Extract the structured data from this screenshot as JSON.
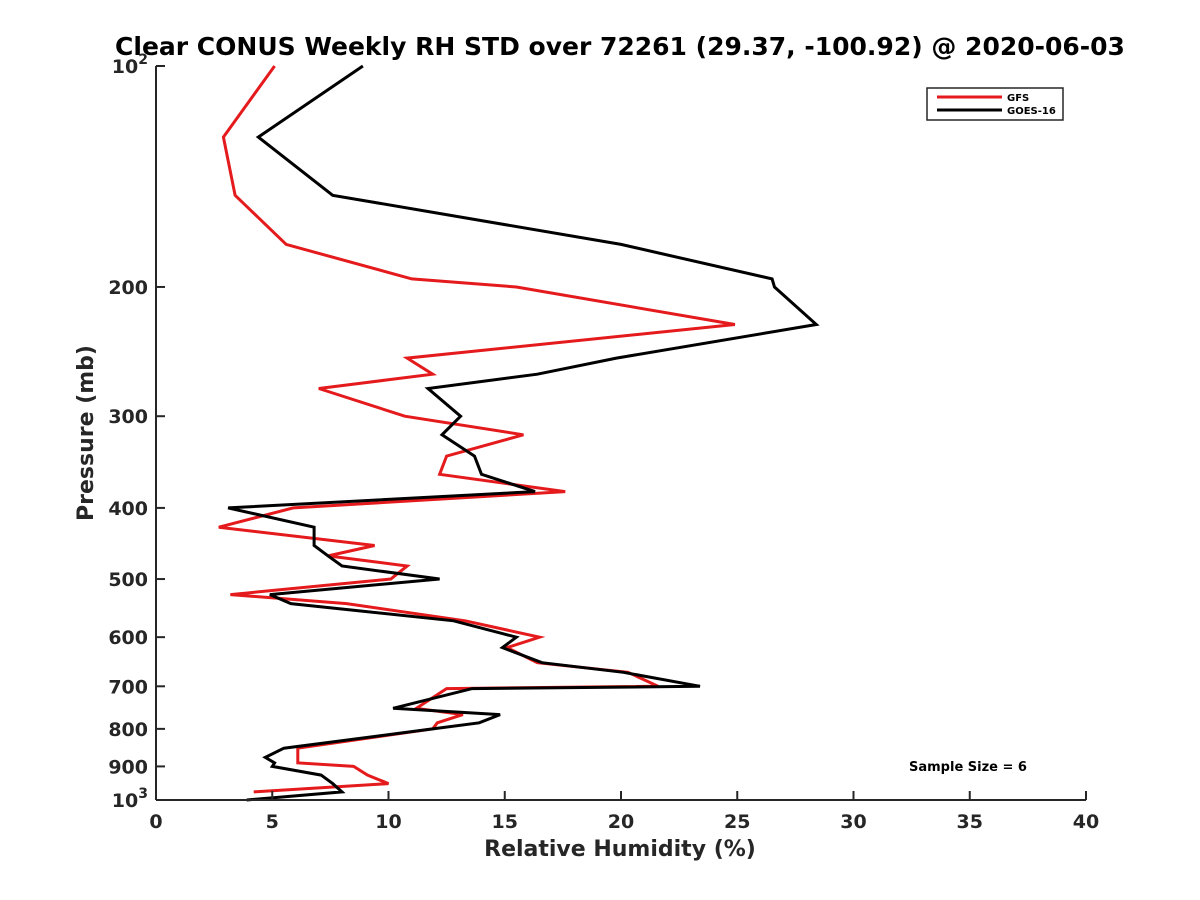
{
  "chart_data": {
    "type": "line",
    "title": "Clear CONUS Weekly RH STD over 72261 (29.37, -100.92) @ 2020-06-03",
    "xlabel": "Relative Humidity (%)",
    "ylabel": "Pressure (mb)",
    "xlim": [
      0,
      40
    ],
    "ylim": [
      100,
      1000
    ],
    "y_scale": "log",
    "y_reversed": true,
    "x_ticks": [
      "0",
      "5",
      "10",
      "15",
      "20",
      "25",
      "30",
      "35",
      "40"
    ],
    "x_tick_values": [
      0,
      5,
      10,
      15,
      20,
      25,
      30,
      35,
      40
    ],
    "y_ticks": [
      {
        "value": 100,
        "base": "10",
        "exp": "2"
      },
      {
        "value": 200,
        "label": "200"
      },
      {
        "value": 300,
        "label": "300"
      },
      {
        "value": 400,
        "label": "400"
      },
      {
        "value": 500,
        "label": "500"
      },
      {
        "value": 600,
        "label": "600"
      },
      {
        "value": 700,
        "label": "700"
      },
      {
        "value": 800,
        "label": "800"
      },
      {
        "value": 900,
        "label": "900"
      },
      {
        "value": 1000,
        "base": "10",
        "exp": "3"
      }
    ],
    "legend_position": "top-right",
    "grid": false,
    "annotation": "Sample Size = 6",
    "series": [
      {
        "name": "GFS",
        "color": "#e41a1c",
        "points": [
          [
            5.1,
            100
          ],
          [
            2.9,
            125
          ],
          [
            3.4,
            150
          ],
          [
            5.6,
            175
          ],
          [
            11,
            195
          ],
          [
            15.5,
            200
          ],
          [
            24.9,
            225
          ],
          [
            10.8,
            250
          ],
          [
            11.9,
            263
          ],
          [
            7,
            275
          ],
          [
            10.7,
            300
          ],
          [
            15.8,
            318
          ],
          [
            12.5,
            340
          ],
          [
            12.2,
            360
          ],
          [
            17.6,
            380
          ],
          [
            5.9,
            400
          ],
          [
            2.7,
            425
          ],
          [
            9.4,
            450
          ],
          [
            7.4,
            465
          ],
          [
            10.8,
            480
          ],
          [
            10.1,
            500
          ],
          [
            3.2,
            525
          ],
          [
            8.2,
            540
          ],
          [
            13.3,
            570
          ],
          [
            16.5,
            600
          ],
          [
            15.1,
            620
          ],
          [
            16.4,
            650
          ],
          [
            20.3,
            670
          ],
          [
            21.6,
            700
          ],
          [
            12.5,
            705
          ],
          [
            11.2,
            750
          ],
          [
            13.2,
            765
          ],
          [
            12.1,
            785
          ],
          [
            11.9,
            800
          ],
          [
            6.1,
            850
          ],
          [
            6.1,
            875
          ],
          [
            6.1,
            890
          ],
          [
            8.5,
            900
          ],
          [
            9.1,
            925
          ],
          [
            10,
            950
          ],
          [
            4.2,
            975
          ]
        ]
      },
      {
        "name": "GOES-16",
        "color": "#000000",
        "points": [
          [
            8.9,
            100
          ],
          [
            4.4,
            125
          ],
          [
            7.6,
            150
          ],
          [
            20,
            175
          ],
          [
            26.5,
            195
          ],
          [
            26.6,
            200
          ],
          [
            28.4,
            225
          ],
          [
            19.8,
            250
          ],
          [
            16.4,
            263
          ],
          [
            11.7,
            275
          ],
          [
            13.1,
            300
          ],
          [
            12.3,
            318
          ],
          [
            13.7,
            340
          ],
          [
            14,
            360
          ],
          [
            16.3,
            380
          ],
          [
            3.1,
            400
          ],
          [
            6.8,
            425
          ],
          [
            6.8,
            450
          ],
          [
            7.4,
            465
          ],
          [
            8,
            480
          ],
          [
            12.2,
            500
          ],
          [
            4.9,
            525
          ],
          [
            5.8,
            540
          ],
          [
            12.8,
            570
          ],
          [
            15.5,
            600
          ],
          [
            14.9,
            620
          ],
          [
            16.6,
            650
          ],
          [
            20.1,
            670
          ],
          [
            23.4,
            700
          ],
          [
            13.6,
            705
          ],
          [
            10.2,
            750
          ],
          [
            14.8,
            765
          ],
          [
            13.9,
            785
          ],
          [
            11.9,
            800
          ],
          [
            5.5,
            850
          ],
          [
            4.7,
            875
          ],
          [
            5.1,
            890
          ],
          [
            5,
            900
          ],
          [
            7.1,
            925
          ],
          [
            7.6,
            950
          ],
          [
            8,
            975
          ],
          [
            3.9,
            1000
          ]
        ]
      }
    ]
  }
}
